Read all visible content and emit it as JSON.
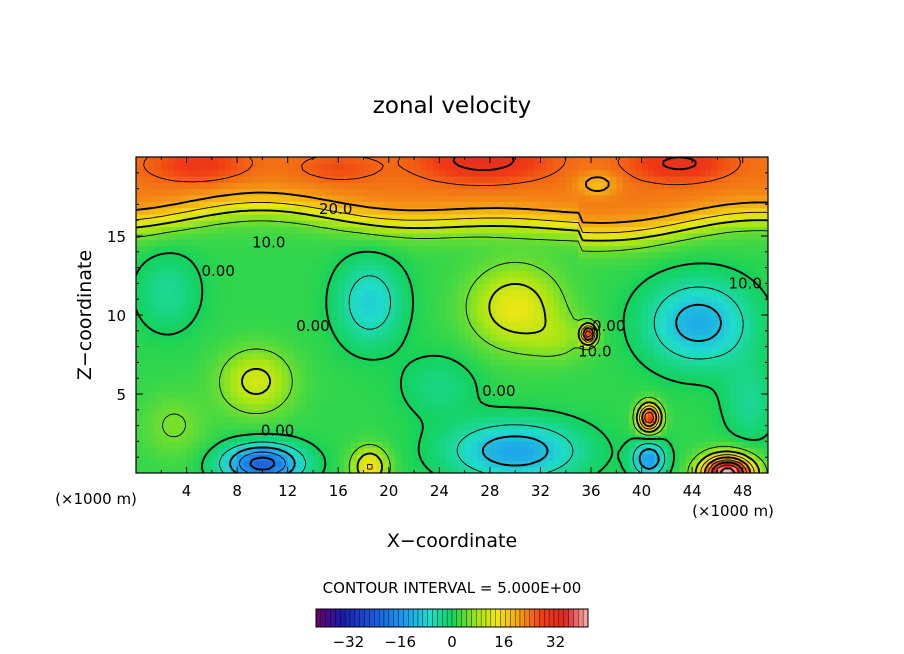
{
  "chart_data": {
    "type": "heatmap",
    "title": "zonal velocity",
    "xlabel": "X−coordinate",
    "ylabel": "Z−coordinate",
    "x_unit_label_left": "(×1000 m)",
    "x_unit_label_right": "(×1000 m)",
    "xlim": [
      0,
      50
    ],
    "ylim": [
      0,
      20
    ],
    "x_ticks": [
      4,
      8,
      12,
      16,
      20,
      24,
      28,
      32,
      36,
      40,
      44,
      48
    ],
    "x_tick_labels": [
      "4",
      "8",
      "12",
      "16",
      "20",
      "24",
      "28",
      "32",
      "36",
      "40",
      "44",
      "48"
    ],
    "y_ticks": [
      5,
      10,
      15
    ],
    "y_tick_labels": [
      "5",
      "10",
      "15"
    ],
    "contour_interval_text": "CONTOUR INTERVAL = 5.000E+00",
    "contour_interval": 5.0,
    "colorbar": {
      "min": -42,
      "max": 42,
      "ticks": [
        -32,
        -16,
        0,
        16,
        32
      ],
      "tick_labels": [
        "−32",
        "−16",
        "0",
        "16",
        "32"
      ]
    },
    "contour_labels": [
      {
        "text": "20.0",
        "x": 15.8,
        "y": 16.7
      },
      {
        "text": "10.0",
        "x": 10.5,
        "y": 14.6
      },
      {
        "text": "10.0",
        "x": 48.2,
        "y": 12.0
      },
      {
        "text": "0.00",
        "x": 6.5,
        "y": 12.8
      },
      {
        "text": "0.00",
        "x": 14.0,
        "y": 9.3
      },
      {
        "text": "10.0",
        "x": 36.3,
        "y": 7.7
      },
      {
        "text": "0.00",
        "x": 37.4,
        "y": 9.3
      },
      {
        "text": "0.00",
        "x": 28.7,
        "y": 5.2
      },
      {
        "text": "0.00",
        "x": 11.2,
        "y": 2.7
      }
    ],
    "features": [
      {
        "kind": "upper-layer",
        "z_from": 16.2,
        "z_to": 20,
        "value": 25
      },
      {
        "kind": "jet-core",
        "x": 27.5,
        "z": 19.5,
        "value": 31
      },
      {
        "kind": "jet-core",
        "x": 43,
        "z": 19.3,
        "value": 30
      },
      {
        "kind": "jet-core",
        "x": 5,
        "z": 19,
        "value": 29
      },
      {
        "kind": "positive-cell",
        "x": 30,
        "z": 10.5,
        "value": 13
      },
      {
        "kind": "positive-cell",
        "x": 10,
        "z": 5.5,
        "value": 11
      },
      {
        "kind": "negative-cell",
        "x": 44.5,
        "z": 9.5,
        "value": -12
      },
      {
        "kind": "negative-cell",
        "x": 18.5,
        "z": 10.5,
        "value": -9
      },
      {
        "kind": "negative-cell",
        "x": 10,
        "z": 0.8,
        "value": -22
      },
      {
        "kind": "negative-cell",
        "x": 30,
        "z": 1.5,
        "value": -14
      },
      {
        "kind": "negative-cell",
        "x": 40.5,
        "z": 1.0,
        "value": -15
      },
      {
        "kind": "positive-cell",
        "x": 40.5,
        "z": 3.5,
        "value": 26
      },
      {
        "kind": "positive-cell",
        "x": 46.5,
        "z": 0.2,
        "value": 38
      },
      {
        "kind": "positive-cell",
        "x": 35.8,
        "z": 8.8,
        "value": 24
      },
      {
        "kind": "positive-cell",
        "x": 18.5,
        "z": 0.5,
        "value": 12
      }
    ]
  }
}
